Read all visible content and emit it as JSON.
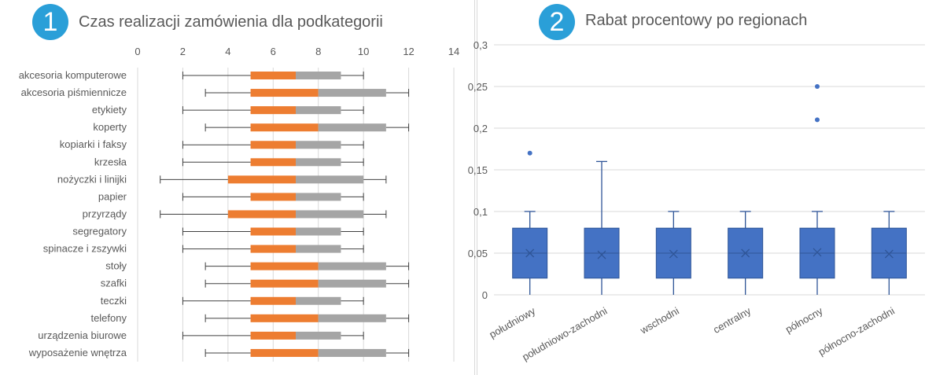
{
  "chart_data": [
    {
      "type": "boxplot-horizontal",
      "badge": "1",
      "title": "Czas realizacji zamówienia dla podkategorii",
      "xlim": [
        0,
        14
      ],
      "x_ticks": [
        "0",
        "2",
        "4",
        "6",
        "8",
        "10",
        "12",
        "14"
      ],
      "grid": true,
      "colors": {
        "lower_box": "#ed7d31",
        "upper_box": "#a5a5a5",
        "whisker": "#404040"
      },
      "categories": [
        "akcesoria komputerowe",
        "akcesoria piśmiennicze",
        "etykiety",
        "koperty",
        "kopiarki i faksy",
        "krzesła",
        "nożyczki i linijki",
        "papier",
        "przyrządy",
        "segregatory",
        "spinacze i zszywki",
        "stoły",
        "szafki",
        "teczki",
        "telefony",
        "urządzenia biurowe",
        "wyposażenie wnętrza"
      ],
      "min": [
        2,
        3,
        2,
        3,
        2,
        2,
        1,
        2,
        1,
        2,
        2,
        3,
        3,
        2,
        3,
        2,
        3
      ],
      "q1": [
        5,
        5,
        5,
        5,
        5,
        5,
        4,
        5,
        4,
        5,
        5,
        5,
        5,
        5,
        5,
        5,
        5
      ],
      "median": [
        7,
        8,
        7,
        8,
        7,
        7,
        7,
        7,
        7,
        7,
        7,
        8,
        8,
        7,
        8,
        7,
        8
      ],
      "q3": [
        9,
        11,
        9,
        11,
        9,
        9,
        10,
        9,
        10,
        9,
        9,
        11,
        11,
        9,
        11,
        9,
        11
      ],
      "max": [
        10,
        12,
        10,
        12,
        10,
        10,
        11,
        10,
        11,
        10,
        10,
        12,
        12,
        10,
        12,
        10,
        12
      ]
    },
    {
      "type": "boxplot",
      "badge": "2",
      "title": "Rabat procentowy po regionach",
      "ylim": [
        0,
        0.3
      ],
      "y_ticks": [
        "0",
        "0,05",
        "0,1",
        "0,15",
        "0,2",
        "0,25",
        "0,3"
      ],
      "grid": true,
      "colors": {
        "box": "#4472c4",
        "border": "#2f5597"
      },
      "categories": [
        "południowy",
        "południowo-zachodni",
        "wschodni",
        "centralny",
        "północny",
        "północno-zachodni"
      ],
      "min": [
        0,
        0,
        0,
        0,
        0,
        0
      ],
      "q1": [
        0.02,
        0.02,
        0.02,
        0.02,
        0.02,
        0.02
      ],
      "median": [
        0.05,
        0.05,
        0.05,
        0.05,
        0.05,
        0.05
      ],
      "q3": [
        0.08,
        0.08,
        0.08,
        0.08,
        0.08,
        0.08
      ],
      "max": [
        0.1,
        0.16,
        0.1,
        0.1,
        0.1,
        0.1
      ],
      "mean": [
        0.05,
        0.048,
        0.049,
        0.05,
        0.051,
        0.049
      ],
      "outliers": [
        [
          0.17
        ],
        [],
        [],
        [],
        [
          0.25,
          0.21
        ],
        []
      ]
    }
  ]
}
